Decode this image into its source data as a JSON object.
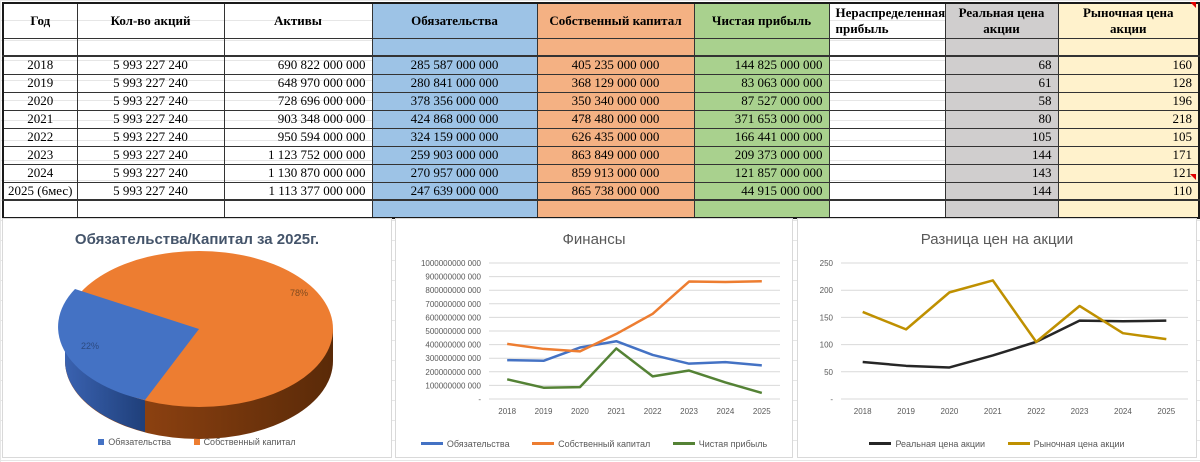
{
  "table": {
    "headers": [
      "Год",
      "Кол-во акций",
      "Активы",
      "Обязательства",
      "Собственный капитал",
      "Чистая прибыль",
      "Нераспределенная прибыль",
      "Реальная цена акции",
      "Рыночная цена акции"
    ],
    "rows": [
      [
        "2018",
        "5 993 227 240",
        "690 822 000 000",
        "285 587 000 000",
        "405 235 000 000",
        "144 825 000 000",
        "",
        "68",
        "160"
      ],
      [
        "2019",
        "5 993 227 240",
        "648 970 000 000",
        "280 841 000 000",
        "368 129 000 000",
        "83 063 000 000",
        "",
        "61",
        "128"
      ],
      [
        "2020",
        "5 993 227 240",
        "728 696 000 000",
        "378 356 000 000",
        "350 340 000 000",
        "87 527 000 000",
        "",
        "58",
        "196"
      ],
      [
        "2021",
        "5 993 227 240",
        "903 348 000 000",
        "424 868 000 000",
        "478 480 000 000",
        "371 653 000 000",
        "",
        "80",
        "218"
      ],
      [
        "2022",
        "5 993 227 240",
        "950 594 000 000",
        "324 159 000 000",
        "626 435 000 000",
        "166 441 000 000",
        "",
        "105",
        "105"
      ],
      [
        "2023",
        "5 993 227 240",
        "1 123 752 000 000",
        "259 903 000 000",
        "863 849 000 000",
        "209 373 000 000",
        "",
        "144",
        "171"
      ],
      [
        "2024",
        "5 993 227 240",
        "1 130 870 000 000",
        "270 957 000 000",
        "859 913 000 000",
        "121 857 000 000",
        "",
        "143",
        "121"
      ],
      [
        "2025 (6мес)",
        "5 993 227 240",
        "1 113 377 000 000",
        "247 639 000 000",
        "865 738 000 000",
        "44 915 000 000",
        "",
        "144",
        "110"
      ]
    ],
    "column_colors": [
      "#ffffff",
      "#ffffff",
      "#ffffff",
      "#9dc3e6",
      "#f4b183",
      "#a9d18e",
      "#ffffff",
      "#d0cece",
      "#fff2cc"
    ]
  },
  "chart_data": [
    {
      "type": "pie",
      "title": "Обязательства/Капитал за 2025г.",
      "categories": [
        "Обязательства",
        "Собственный капитал"
      ],
      "values": [
        22,
        78
      ],
      "labels": [
        "22%",
        "78%"
      ],
      "colors": [
        "#4472c4",
        "#ed7d31"
      ],
      "legend_position": "bottom",
      "style": "3d"
    },
    {
      "type": "line",
      "title": "Финансы",
      "categories": [
        "2018",
        "2019",
        "2020",
        "2021",
        "2022",
        "2023",
        "2024",
        "2025 (6мес)"
      ],
      "series": [
        {
          "name": "Обязательства",
          "color": "#4472c4",
          "values": [
            285587000000,
            280841000000,
            378356000000,
            424868000000,
            324159000000,
            259903000000,
            270957000000,
            247639000000
          ]
        },
        {
          "name": "Собственный капитал",
          "color": "#ed7d31",
          "values": [
            405235000000,
            368129000000,
            350340000000,
            478480000000,
            626435000000,
            863849000000,
            859913000000,
            865738000000
          ]
        },
        {
          "name": "Чистая прибыль",
          "color": "#548235",
          "values": [
            144825000000,
            83063000000,
            87527000000,
            371653000000,
            166441000000,
            209373000000,
            121857000000,
            44915000000
          ]
        }
      ],
      "yticks": [
        "-",
        "100000000 000",
        "200000000 000",
        "300000000 000",
        "400000000 000",
        "500000000 000",
        "600000000 000",
        "700000000 000",
        "800000000 000",
        "900000000 000",
        "1000000000 000"
      ],
      "ylim": [
        0,
        1000000000000
      ],
      "grid": true,
      "legend_position": "bottom"
    },
    {
      "type": "line",
      "title": "Разница цен на акции",
      "categories": [
        "2018",
        "2019",
        "2020",
        "2021",
        "2022",
        "2023",
        "2024",
        "2025 (6мес)"
      ],
      "series": [
        {
          "name": "Реальная цена акции",
          "color": "#262626",
          "values": [
            68,
            61,
            58,
            80,
            105,
            144,
            143,
            144
          ]
        },
        {
          "name": "Рыночная цена акции",
          "color": "#bf9000",
          "values": [
            160,
            128,
            196,
            218,
            105,
            171,
            121,
            110
          ]
        }
      ],
      "yticks": [
        "-",
        "50",
        "100",
        "150",
        "200",
        "250"
      ],
      "ylim": [
        0,
        250
      ],
      "grid": true,
      "legend_position": "bottom"
    }
  ]
}
